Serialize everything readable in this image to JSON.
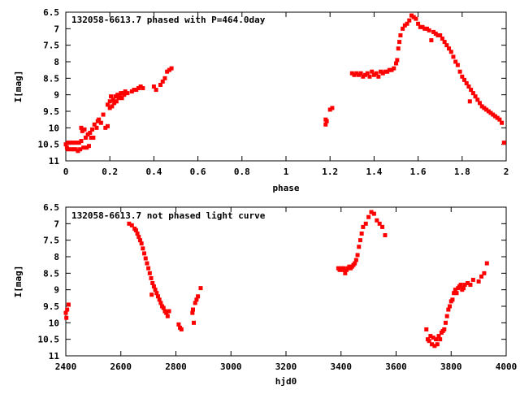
{
  "chart_data": [
    {
      "type": "scatter",
      "title": "132058-6613.7 phased with P=464.0day",
      "xlabel": "phase",
      "ylabel": "I[mag]",
      "xlim": [
        0,
        2
      ],
      "ylim": [
        11,
        6.5
      ],
      "y_inverted": true,
      "grid": false,
      "x_ticks": [
        "0",
        "0.2",
        "0.4",
        "0.6",
        "0.8",
        "1",
        "1.2",
        "1.4",
        "1.6",
        "1.8",
        "2"
      ],
      "x_tick_values": [
        0,
        0.2,
        0.4,
        0.6,
        0.8,
        1.0,
        1.2,
        1.4,
        1.6,
        1.8,
        2.0
      ],
      "y_ticks": [
        "6.5",
        "7",
        "7.5",
        "8",
        "8.5",
        "9",
        "9.5",
        "10",
        "10.5",
        "11"
      ],
      "y_tick_values": [
        6.5,
        7,
        7.5,
        8,
        8.5,
        9,
        9.5,
        10,
        10.5,
        11
      ],
      "marker_color": "#ff0000",
      "points": [
        [
          0.0,
          10.5
        ],
        [
          0.005,
          10.6
        ],
        [
          0.01,
          10.45
        ],
        [
          0.01,
          10.65
        ],
        [
          0.02,
          10.45
        ],
        [
          0.025,
          10.65
        ],
        [
          0.03,
          10.45
        ],
        [
          0.035,
          10.65
        ],
        [
          0.04,
          10.45
        ],
        [
          0.045,
          10.65
        ],
        [
          0.05,
          10.45
        ],
        [
          0.055,
          10.7
        ],
        [
          0.06,
          10.45
        ],
        [
          0.065,
          10.65
        ],
        [
          0.07,
          10.4
        ],
        [
          0.07,
          10.0
        ],
        [
          0.075,
          10.1
        ],
        [
          0.08,
          10.6
        ],
        [
          0.085,
          10.05
        ],
        [
          0.09,
          10.3
        ],
        [
          0.095,
          10.6
        ],
        [
          0.1,
          10.2
        ],
        [
          0.105,
          10.55
        ],
        [
          0.11,
          10.15
        ],
        [
          0.115,
          10.3
        ],
        [
          0.12,
          10.05
        ],
        [
          0.125,
          10.3
        ],
        [
          0.13,
          9.9
        ],
        [
          0.14,
          10.0
        ],
        [
          0.145,
          9.8
        ],
        [
          0.15,
          9.75
        ],
        [
          0.16,
          9.85
        ],
        [
          0.17,
          9.6
        ],
        [
          0.18,
          10.0
        ],
        [
          0.19,
          9.95
        ],
        [
          0.19,
          9.3
        ],
        [
          0.2,
          9.4
        ],
        [
          0.2,
          9.2
        ],
        [
          0.205,
          9.05
        ],
        [
          0.21,
          9.35
        ],
        [
          0.215,
          9.15
        ],
        [
          0.22,
          9.25
        ],
        [
          0.225,
          9.05
        ],
        [
          0.23,
          9.2
        ],
        [
          0.235,
          9.0
        ],
        [
          0.24,
          9.1
        ],
        [
          0.245,
          9.05
        ],
        [
          0.25,
          8.95
        ],
        [
          0.255,
          9.1
        ],
        [
          0.26,
          8.95
        ],
        [
          0.265,
          9.0
        ],
        [
          0.27,
          8.9
        ],
        [
          0.28,
          8.95
        ],
        [
          0.3,
          8.9
        ],
        [
          0.31,
          8.85
        ],
        [
          0.32,
          8.85
        ],
        [
          0.33,
          8.8
        ],
        [
          0.34,
          8.75
        ],
        [
          0.35,
          8.8
        ],
        [
          0.4,
          8.75
        ],
        [
          0.41,
          8.85
        ],
        [
          0.43,
          8.7
        ],
        [
          0.44,
          8.6
        ],
        [
          0.45,
          8.5
        ],
        [
          0.46,
          8.3
        ],
        [
          0.47,
          8.25
        ],
        [
          0.48,
          8.2
        ],
        [
          1.18,
          9.75
        ],
        [
          1.18,
          9.9
        ],
        [
          1.185,
          9.8
        ],
        [
          1.2,
          9.45
        ],
        [
          1.21,
          9.4
        ],
        [
          1.3,
          8.35
        ],
        [
          1.31,
          8.4
        ],
        [
          1.32,
          8.35
        ],
        [
          1.33,
          8.4
        ],
        [
          1.34,
          8.35
        ],
        [
          1.35,
          8.45
        ],
        [
          1.36,
          8.4
        ],
        [
          1.37,
          8.35
        ],
        [
          1.38,
          8.45
        ],
        [
          1.39,
          8.3
        ],
        [
          1.4,
          8.4
        ],
        [
          1.41,
          8.35
        ],
        [
          1.42,
          8.45
        ],
        [
          1.43,
          8.3
        ],
        [
          1.44,
          8.35
        ],
        [
          1.45,
          8.3
        ],
        [
          1.46,
          8.3
        ],
        [
          1.47,
          8.25
        ],
        [
          1.48,
          8.25
        ],
        [
          1.49,
          8.2
        ],
        [
          1.5,
          8.05
        ],
        [
          1.505,
          7.95
        ],
        [
          1.51,
          7.6
        ],
        [
          1.515,
          7.4
        ],
        [
          1.52,
          7.2
        ],
        [
          1.53,
          7.0
        ],
        [
          1.54,
          6.9
        ],
        [
          1.55,
          6.85
        ],
        [
          1.56,
          6.75
        ],
        [
          1.57,
          6.6
        ],
        [
          1.58,
          6.65
        ],
        [
          1.59,
          6.7
        ],
        [
          1.6,
          6.85
        ],
        [
          1.61,
          6.95
        ],
        [
          1.62,
          6.95
        ],
        [
          1.63,
          7.0
        ],
        [
          1.64,
          7.0
        ],
        [
          1.65,
          7.05
        ],
        [
          1.66,
          7.35
        ],
        [
          1.67,
          7.1
        ],
        [
          1.68,
          7.15
        ],
        [
          1.69,
          7.2
        ],
        [
          1.7,
          7.2
        ],
        [
          1.71,
          7.3
        ],
        [
          1.72,
          7.4
        ],
        [
          1.73,
          7.5
        ],
        [
          1.74,
          7.6
        ],
        [
          1.75,
          7.7
        ],
        [
          1.76,
          7.85
        ],
        [
          1.77,
          8.0
        ],
        [
          1.78,
          8.1
        ],
        [
          1.79,
          8.3
        ],
        [
          1.8,
          8.45
        ],
        [
          1.81,
          8.55
        ],
        [
          1.82,
          8.65
        ],
        [
          1.83,
          8.75
        ],
        [
          1.84,
          8.85
        ],
        [
          1.85,
          8.95
        ],
        [
          1.86,
          9.05
        ],
        [
          1.87,
          9.15
        ],
        [
          1.88,
          9.25
        ],
        [
          1.89,
          9.35
        ],
        [
          1.9,
          9.4
        ],
        [
          1.91,
          9.45
        ],
        [
          1.92,
          9.5
        ],
        [
          1.93,
          9.55
        ],
        [
          1.94,
          9.6
        ],
        [
          1.95,
          9.65
        ],
        [
          1.96,
          9.7
        ],
        [
          1.97,
          9.75
        ],
        [
          1.98,
          9.85
        ],
        [
          1.99,
          10.45
        ],
        [
          1.835,
          9.2
        ]
      ]
    },
    {
      "type": "scatter",
      "title": "132058-6613.7 not phased light curve",
      "xlabel": "hjd0",
      "ylabel": "I[mag]",
      "xlim": [
        2400,
        4000
      ],
      "ylim": [
        11,
        6.5
      ],
      "y_inverted": true,
      "grid": false,
      "x_ticks": [
        "2400",
        "2600",
        "2800",
        "3000",
        "3200",
        "3400",
        "3600",
        "3800",
        "4000"
      ],
      "x_tick_values": [
        2400,
        2600,
        2800,
        3000,
        3200,
        3400,
        3600,
        3800,
        4000
      ],
      "y_ticks": [
        "6.5",
        "7",
        "7.5",
        "8",
        "8.5",
        "9",
        "9.5",
        "10",
        "10.5",
        "11"
      ],
      "y_tick_values": [
        6.5,
        7,
        7.5,
        8,
        8.5,
        9,
        9.5,
        10,
        10.5,
        11
      ],
      "marker_color": "#ff0000",
      "points": [
        [
          2400,
          9.7
        ],
        [
          2402,
          9.85
        ],
        [
          2405,
          9.6
        ],
        [
          2410,
          9.45
        ],
        [
          2630,
          7.0
        ],
        [
          2640,
          7.05
        ],
        [
          2650,
          7.15
        ],
        [
          2655,
          7.2
        ],
        [
          2660,
          7.3
        ],
        [
          2665,
          7.4
        ],
        [
          2670,
          7.5
        ],
        [
          2675,
          7.6
        ],
        [
          2680,
          7.75
        ],
        [
          2685,
          7.9
        ],
        [
          2690,
          8.05
        ],
        [
          2695,
          8.2
        ],
        [
          2700,
          8.35
        ],
        [
          2705,
          8.5
        ],
        [
          2710,
          8.65
        ],
        [
          2712,
          9.15
        ],
        [
          2715,
          8.8
        ],
        [
          2720,
          8.9
        ],
        [
          2725,
          9.0
        ],
        [
          2730,
          9.1
        ],
        [
          2735,
          9.2
        ],
        [
          2740,
          9.3
        ],
        [
          2745,
          9.4
        ],
        [
          2750,
          9.5
        ],
        [
          2755,
          9.55
        ],
        [
          2760,
          9.65
        ],
        [
          2765,
          9.7
        ],
        [
          2770,
          9.8
        ],
        [
          2775,
          9.65
        ],
        [
          2810,
          10.05
        ],
        [
          2815,
          10.15
        ],
        [
          2820,
          10.2
        ],
        [
          2860,
          9.7
        ],
        [
          2862,
          9.6
        ],
        [
          2865,
          10.0
        ],
        [
          2870,
          9.4
        ],
        [
          2875,
          9.3
        ],
        [
          2880,
          9.2
        ],
        [
          2890,
          8.95
        ],
        [
          3390,
          8.35
        ],
        [
          3395,
          8.4
        ],
        [
          3400,
          8.35
        ],
        [
          3405,
          8.4
        ],
        [
          3410,
          8.35
        ],
        [
          3415,
          8.5
        ],
        [
          3420,
          8.4
        ],
        [
          3425,
          8.35
        ],
        [
          3430,
          8.3
        ],
        [
          3435,
          8.35
        ],
        [
          3440,
          8.3
        ],
        [
          3445,
          8.25
        ],
        [
          3450,
          8.2
        ],
        [
          3455,
          8.1
        ],
        [
          3460,
          7.95
        ],
        [
          3465,
          7.7
        ],
        [
          3470,
          7.5
        ],
        [
          3475,
          7.3
        ],
        [
          3480,
          7.1
        ],
        [
          3490,
          7.0
        ],
        [
          3500,
          6.8
        ],
        [
          3510,
          6.65
        ],
        [
          3520,
          6.7
        ],
        [
          3530,
          6.9
        ],
        [
          3540,
          7.0
        ],
        [
          3550,
          7.1
        ],
        [
          3560,
          7.35
        ],
        [
          3710,
          10.2
        ],
        [
          3715,
          10.5
        ],
        [
          3720,
          10.55
        ],
        [
          3725,
          10.4
        ],
        [
          3730,
          10.65
        ],
        [
          3735,
          10.45
        ],
        [
          3740,
          10.7
        ],
        [
          3745,
          10.5
        ],
        [
          3750,
          10.65
        ],
        [
          3755,
          10.4
        ],
        [
          3760,
          10.5
        ],
        [
          3765,
          10.3
        ],
        [
          3770,
          10.25
        ],
        [
          3775,
          10.2
        ],
        [
          3780,
          10.0
        ],
        [
          3785,
          9.8
        ],
        [
          3790,
          9.6
        ],
        [
          3795,
          9.5
        ],
        [
          3800,
          9.35
        ],
        [
          3805,
          9.3
        ],
        [
          3810,
          9.1
        ],
        [
          3815,
          9.0
        ],
        [
          3820,
          9.1
        ],
        [
          3825,
          8.95
        ],
        [
          3830,
          8.9
        ],
        [
          3835,
          8.85
        ],
        [
          3840,
          9.0
        ],
        [
          3845,
          8.95
        ],
        [
          3850,
          8.85
        ],
        [
          3860,
          8.8
        ],
        [
          3870,
          8.85
        ],
        [
          3880,
          8.7
        ],
        [
          3900,
          8.75
        ],
        [
          3910,
          8.6
        ],
        [
          3920,
          8.5
        ],
        [
          3930,
          8.2
        ]
      ]
    }
  ]
}
